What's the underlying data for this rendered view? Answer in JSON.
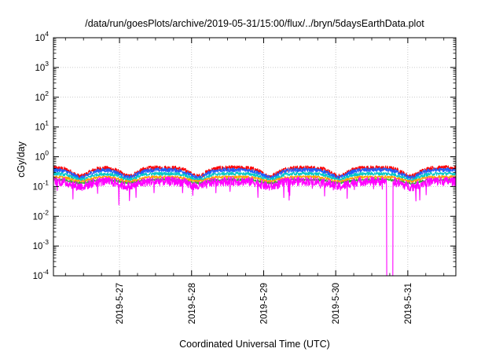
{
  "chart_data": {
    "type": "line",
    "title": "/data/run/goesPlots/archive/2019-05-31/15:00/flux/../bryn/5daysEarthData.plot",
    "xlabel": "Coordinated Universal Time (UTC)",
    "ylabel": "cGy/day",
    "y_scale": "log",
    "ylim": [
      0.0001,
      10000
    ],
    "y_ticks": [
      {
        "base": "10",
        "exp": "4"
      },
      {
        "base": "10",
        "exp": "3"
      },
      {
        "base": "10",
        "exp": "2"
      },
      {
        "base": "10",
        "exp": "1"
      },
      {
        "base": "10",
        "exp": "0"
      },
      {
        "base": "10",
        "exp": "-1"
      },
      {
        "base": "10",
        "exp": "-2"
      },
      {
        "base": "10",
        "exp": "-3"
      },
      {
        "base": "10",
        "exp": "-4"
      }
    ],
    "x_ticks": [
      "2019-5-27",
      "2019-5-28",
      "2019-5-29",
      "2019-5-30",
      "2019-5-31"
    ],
    "xlim": [
      "2019-05-26 02:00",
      "2019-05-31 16:00"
    ],
    "grid": true,
    "series": [
      {
        "color": "#ff0000",
        "baseline": 0.42,
        "dip": 0.22,
        "noise": 0.18
      },
      {
        "color": "#2060ff",
        "baseline": 0.36,
        "dip": 0.2,
        "noise": 0.16
      },
      {
        "color": "#00c8c8",
        "baseline": 0.27,
        "dip": 0.17,
        "noise": 0.13
      },
      {
        "color": "#ffa000",
        "baseline": 0.21,
        "dip": 0.15,
        "noise": 0.1
      },
      {
        "color": "#30b030",
        "baseline": 0.17,
        "dip": 0.13,
        "noise": 0.09
      },
      {
        "color": "#ff00ff",
        "baseline": 0.15,
        "dip": 0.1,
        "noise": 0.35
      }
    ],
    "dips_at": [
      "2019-05-26 11:00",
      "2019-05-27 03:00",
      "2019-05-28 02:00",
      "2019-05-29 02:00",
      "2019-05-30 01:00",
      "2019-05-31 01:00"
    ],
    "dropout": {
      "series_color": "#ff00ff",
      "start": "2019-05-30 17:00",
      "end": "2019-05-30 19:00",
      "min_value": 0.0001
    }
  }
}
